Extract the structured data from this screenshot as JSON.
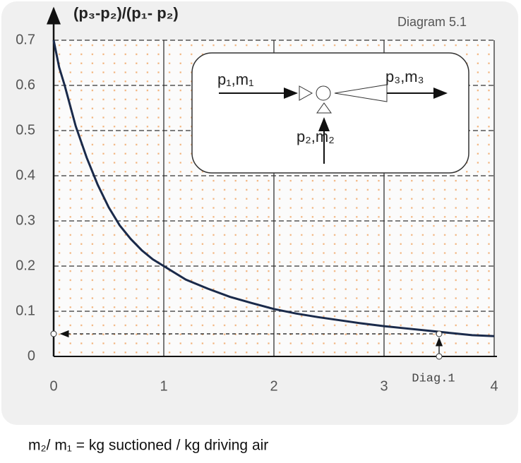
{
  "chart_data": {
    "type": "line",
    "title": "Diagram 5.1",
    "y_label": "(p₃-p₂)/(p₁- p₂)",
    "x_label": "m₂/ m₁ = kg suctioned / kg  driving air",
    "x": [
      0,
      0.05,
      0.1,
      0.2,
      0.3,
      0.4,
      0.5,
      0.6,
      0.7,
      0.8,
      0.9,
      1.0,
      1.2,
      1.4,
      1.6,
      1.8,
      2.0,
      2.2,
      2.4,
      2.6,
      2.8,
      3.0,
      3.2,
      3.4,
      3.6,
      3.8,
      4.0
    ],
    "series": [
      {
        "name": "curve",
        "color": "#1a2a4a",
        "values": [
          0.7,
          0.64,
          0.6,
          0.51,
          0.44,
          0.38,
          0.33,
          0.29,
          0.26,
          0.235,
          0.215,
          0.2,
          0.17,
          0.15,
          0.132,
          0.118,
          0.105,
          0.095,
          0.087,
          0.08,
          0.073,
          0.067,
          0.062,
          0.057,
          0.052,
          0.047,
          0.045
        ]
      }
    ],
    "xlim": [
      0,
      4
    ],
    "ylim": [
      0,
      0.7
    ],
    "xticks": [
      0,
      1,
      2,
      3,
      4
    ],
    "yticks": [
      0,
      0.1,
      0.2,
      0.3,
      0.4,
      0.5,
      0.6,
      0.7
    ],
    "grid": true,
    "annotation": {
      "x": 3.5,
      "y": 0.05,
      "label": "Diag.1"
    },
    "inset": {
      "inlet": "p₁,m₁",
      "outlet": "p₃,m₃",
      "suction": "p₂,m₂"
    }
  }
}
